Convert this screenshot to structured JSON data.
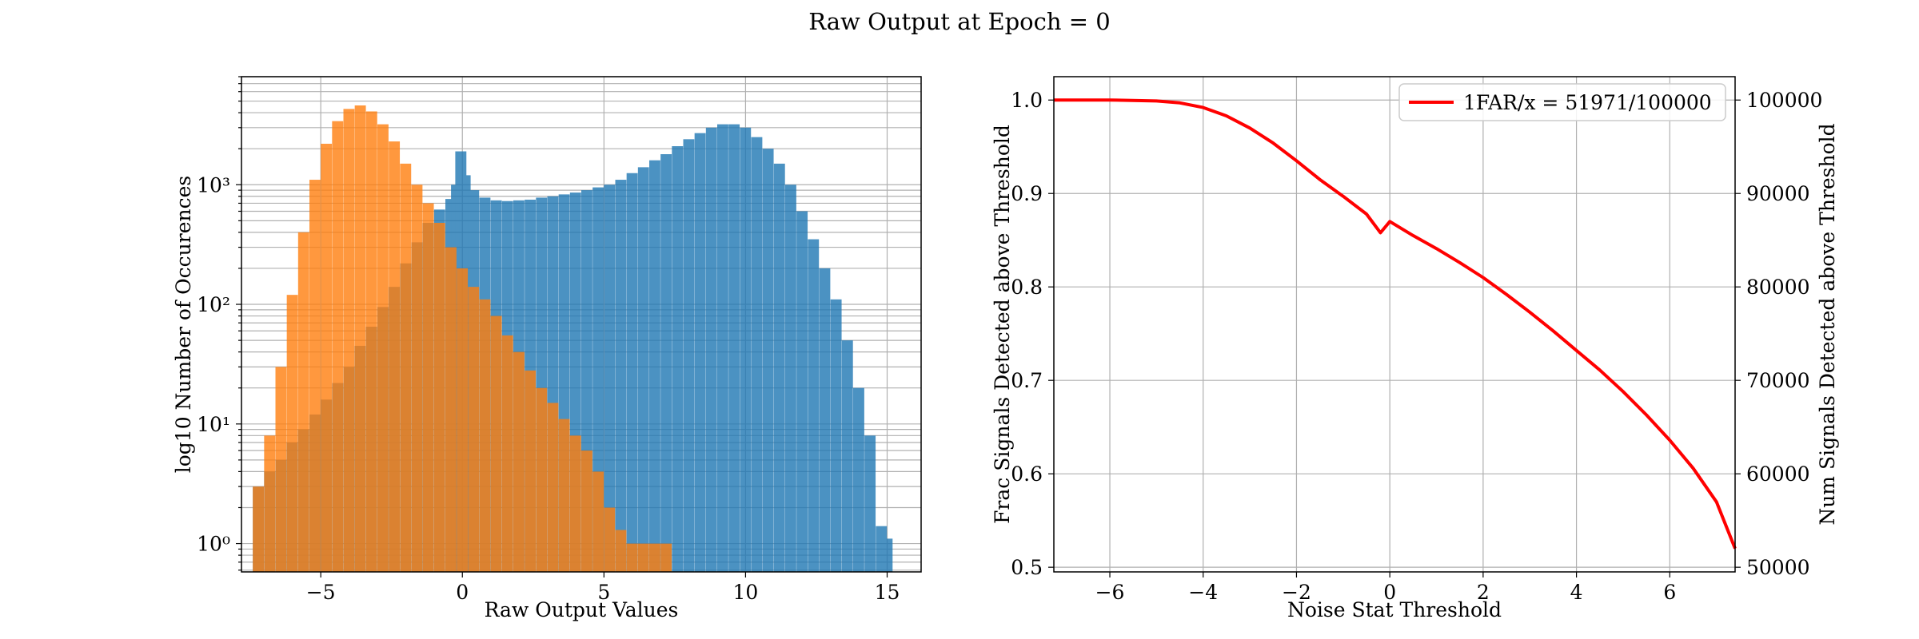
{
  "figure": {
    "title": "Raw Output at Epoch = 0",
    "colors": {
      "signal": "#1f77b4",
      "noise": "#ff7f0e",
      "curve": "#ff0000",
      "grid": "#b0b0b0"
    }
  },
  "chart_data": [
    {
      "type": "bar",
      "subtype": "histogram",
      "xlabel": "Raw Output Values",
      "ylabel": "log10 Number of Occurences",
      "xlim": [
        -7.8,
        16.2
      ],
      "ylim": [
        0.58,
        8000
      ],
      "yscale": "log",
      "grid": true,
      "xticks": [
        -5,
        0,
        5,
        10,
        15
      ],
      "yticks": [
        1,
        10,
        100,
        1000
      ],
      "ytick_labels": [
        "10⁰",
        "10¹",
        "10²",
        "10³"
      ],
      "series": [
        {
          "color": "#1f77b4",
          "points": [
            [
              -7.2,
              3
            ],
            [
              -6.8,
              4
            ],
            [
              -6.4,
              5
            ],
            [
              -6.0,
              7
            ],
            [
              -5.6,
              9
            ],
            [
              -5.2,
              12
            ],
            [
              -4.8,
              16
            ],
            [
              -4.4,
              22
            ],
            [
              -4.0,
              30
            ],
            [
              -3.6,
              45
            ],
            [
              -3.2,
              65
            ],
            [
              -2.8,
              95
            ],
            [
              -2.4,
              140
            ],
            [
              -2.0,
              220
            ],
            [
              -1.6,
              330
            ],
            [
              -1.2,
              480
            ],
            [
              -0.8,
              620
            ],
            [
              -0.4,
              760
            ],
            [
              -0.2,
              1000
            ],
            [
              -0.05,
              1900
            ],
            [
              0.1,
              1200
            ],
            [
              0.4,
              900
            ],
            [
              0.8,
              780
            ],
            [
              1.2,
              740
            ],
            [
              1.6,
              730
            ],
            [
              2.0,
              740
            ],
            [
              2.4,
              750
            ],
            [
              2.8,
              780
            ],
            [
              3.2,
              800
            ],
            [
              3.6,
              830
            ],
            [
              4.0,
              860
            ],
            [
              4.4,
              900
            ],
            [
              4.8,
              950
            ],
            [
              5.2,
              1000
            ],
            [
              5.6,
              1100
            ],
            [
              6.0,
              1250
            ],
            [
              6.4,
              1400
            ],
            [
              6.8,
              1600
            ],
            [
              7.2,
              1800
            ],
            [
              7.6,
              2100
            ],
            [
              8.0,
              2400
            ],
            [
              8.4,
              2700
            ],
            [
              8.8,
              3000
            ],
            [
              9.2,
              3200
            ],
            [
              9.6,
              3200
            ],
            [
              10.0,
              3000
            ],
            [
              10.4,
              2500
            ],
            [
              10.8,
              2000
            ],
            [
              11.2,
              1500
            ],
            [
              11.6,
              1000
            ],
            [
              12.0,
              600
            ],
            [
              12.4,
              350
            ],
            [
              12.8,
              200
            ],
            [
              13.2,
              110
            ],
            [
              13.6,
              50
            ],
            [
              14.0,
              20
            ],
            [
              14.4,
              8
            ],
            [
              14.8,
              1.4
            ],
            [
              15.0,
              1.1
            ]
          ]
        },
        {
          "color": "#ff7f0e",
          "points": [
            [
              -7.2,
              3
            ],
            [
              -6.8,
              8
            ],
            [
              -6.4,
              30
            ],
            [
              -6.0,
              120
            ],
            [
              -5.6,
              400
            ],
            [
              -5.2,
              1100
            ],
            [
              -4.8,
              2200
            ],
            [
              -4.4,
              3400
            ],
            [
              -4.0,
              4300
            ],
            [
              -3.6,
              4600
            ],
            [
              -3.2,
              4100
            ],
            [
              -2.8,
              3200
            ],
            [
              -2.4,
              2300
            ],
            [
              -2.0,
              1500
            ],
            [
              -1.6,
              1000
            ],
            [
              -1.2,
              700
            ],
            [
              -0.8,
              480
            ],
            [
              -0.4,
              300
            ],
            [
              0.0,
              200
            ],
            [
              0.4,
              140
            ],
            [
              0.8,
              110
            ],
            [
              1.2,
              80
            ],
            [
              1.6,
              55
            ],
            [
              2.0,
              40
            ],
            [
              2.4,
              28
            ],
            [
              2.8,
              20
            ],
            [
              3.2,
              15
            ],
            [
              3.6,
              11
            ],
            [
              4.0,
              8
            ],
            [
              4.4,
              6
            ],
            [
              4.8,
              4
            ],
            [
              5.2,
              2
            ],
            [
              5.6,
              1.3
            ],
            [
              6.0,
              1
            ],
            [
              6.4,
              1
            ],
            [
              6.8,
              1
            ],
            [
              7.2,
              1
            ]
          ]
        }
      ]
    },
    {
      "type": "line",
      "xlabel": "Noise Stat Threshold",
      "ylabel": "Frac Signals Detected above Threshold",
      "ylabel_right": "Num Signals Detected above Threshold",
      "xlim": [
        -7.2,
        7.4
      ],
      "ylim": [
        0.495,
        1.025
      ],
      "ylim_right": [
        49500,
        102500
      ],
      "grid": true,
      "legend_position": "upper right",
      "xticks": [
        -6,
        -4,
        -2,
        0,
        2,
        4,
        6
      ],
      "xtick_labels": [
        "−6",
        "−4",
        "−2",
        "0",
        "2",
        "4",
        "6"
      ],
      "yticks": [
        0.5,
        0.6,
        0.7,
        0.8,
        0.9,
        1.0
      ],
      "ytick_labels": [
        "0.5",
        "0.6",
        "0.7",
        "0.8",
        "0.9",
        "1.0"
      ],
      "yticks_right": [
        50000,
        60000,
        70000,
        80000,
        90000,
        100000
      ],
      "series": [
        {
          "name": "1FAR/x = 51971/100000",
          "color": "#ff0000",
          "x": [
            -7.2,
            -6.0,
            -5.0,
            -4.5,
            -4.0,
            -3.5,
            -3.0,
            -2.5,
            -2.0,
            -1.5,
            -1.0,
            -0.5,
            -0.2,
            0.0,
            0.5,
            1.0,
            1.5,
            2.0,
            2.5,
            3.0,
            3.5,
            4.0,
            4.5,
            5.0,
            5.5,
            6.0,
            6.5,
            7.0,
            7.4
          ],
          "y": [
            1.0,
            1.0,
            0.999,
            0.997,
            0.992,
            0.983,
            0.97,
            0.954,
            0.935,
            0.915,
            0.897,
            0.878,
            0.858,
            0.87,
            0.855,
            0.841,
            0.826,
            0.81,
            0.792,
            0.773,
            0.753,
            0.732,
            0.711,
            0.688,
            0.663,
            0.636,
            0.606,
            0.57,
            0.52
          ]
        }
      ]
    }
  ]
}
